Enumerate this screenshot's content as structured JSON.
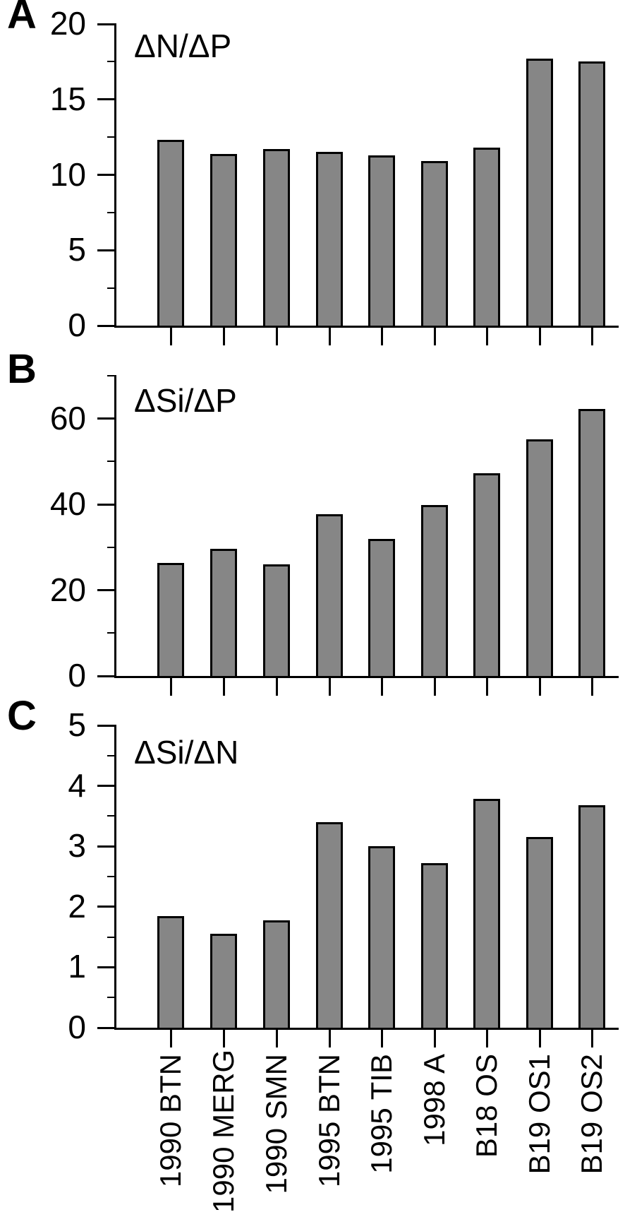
{
  "styles": {
    "background": "#ffffff",
    "bar_fill": "#868686",
    "bar_border": "#000000",
    "axis_color": "#000000",
    "text_color": "#000000"
  },
  "categories": [
    "1990 BTN",
    "1990 MERG",
    "1990 SMN",
    "1995 BTN",
    "1995 TIB",
    "1998 A",
    "B18 OS",
    "B19 OS1",
    "B19 OS2"
  ],
  "chart_data": [
    {
      "type": "bar",
      "panel": "A",
      "title": "ΔN/ΔP",
      "categories": [
        "1990 BTN",
        "1990 MERG",
        "1990 SMN",
        "1995 BTN",
        "1995 TIB",
        "1998 A",
        "B18 OS",
        "B19 OS1",
        "B19 OS2"
      ],
      "values": [
        12.3,
        11.4,
        11.7,
        11.5,
        11.3,
        10.9,
        11.8,
        17.7,
        17.5
      ],
      "ylim": [
        0,
        20
      ],
      "yticks": [
        0,
        5,
        10,
        15,
        20
      ],
      "yticks_minor": [
        2.5,
        7.5,
        12.5,
        17.5
      ],
      "grid": "off",
      "show_x_labels": false
    },
    {
      "type": "bar",
      "panel": "B",
      "title": "ΔSi/ΔP",
      "categories": [
        "1990 BTN",
        "1990 MERG",
        "1990 SMN",
        "1995 BTN",
        "1995 TIB",
        "1998 A",
        "B18 OS",
        "B19 OS1",
        "B19 OS2"
      ],
      "values": [
        26.3,
        29.7,
        26.0,
        37.7,
        32.0,
        39.8,
        47.2,
        55.2,
        62.2
      ],
      "ylim": [
        0,
        70
      ],
      "yticks": [
        0,
        20,
        40,
        60
      ],
      "yticks_minor": [
        10,
        30,
        50,
        70
      ],
      "grid": "off",
      "show_x_labels": false
    },
    {
      "type": "bar",
      "panel": "C",
      "title": "ΔSi/ΔN",
      "categories": [
        "1990 BTN",
        "1990 MERG",
        "1990 SMN",
        "1995 BTN",
        "1995 TIB",
        "1998 A",
        "B18 OS",
        "B19 OS1",
        "B19 OS2"
      ],
      "values": [
        1.85,
        1.55,
        1.78,
        3.4,
        3.0,
        2.72,
        3.78,
        3.15,
        3.68
      ],
      "ylim": [
        0,
        5
      ],
      "yticks": [
        0,
        1,
        2,
        3,
        4,
        5
      ],
      "yticks_minor": [
        0.5,
        1.5,
        2.5,
        3.5,
        4.5
      ],
      "grid": "off",
      "show_x_labels": true
    }
  ]
}
